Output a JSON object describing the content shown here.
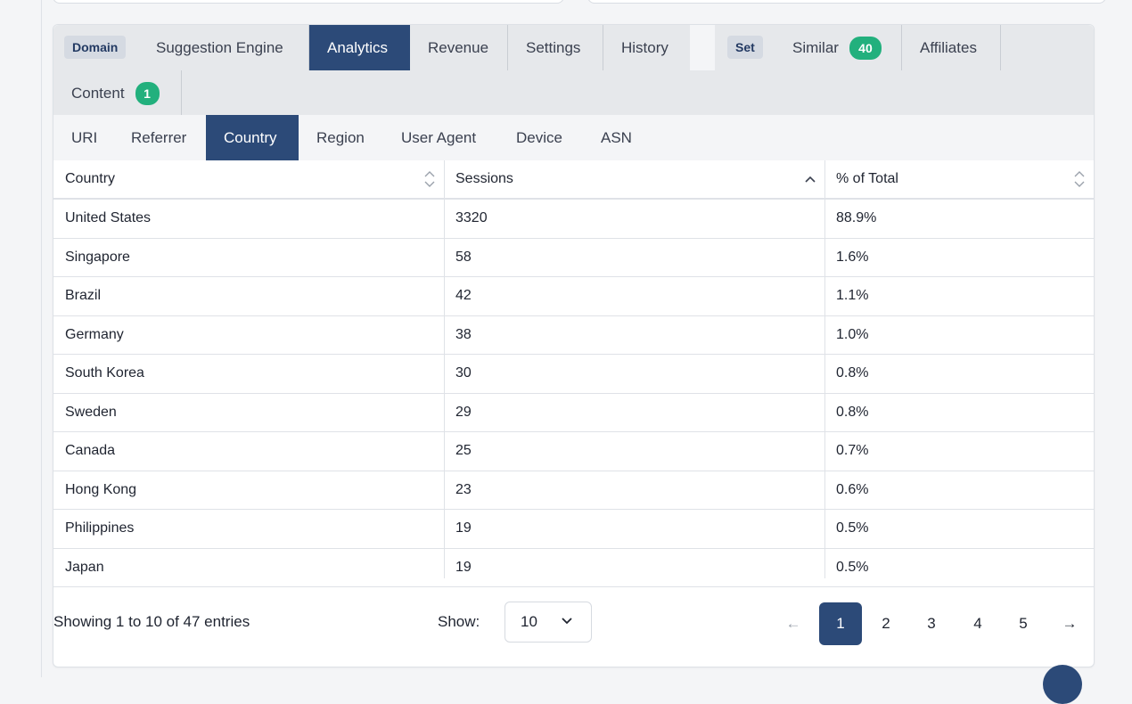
{
  "tabs": {
    "domain_tag": "Domain",
    "set_tag": "Set",
    "items": [
      {
        "label": "Suggestion Engine"
      },
      {
        "label": "Analytics"
      },
      {
        "label": "Revenue"
      },
      {
        "label": "Settings"
      },
      {
        "label": "History"
      },
      {
        "label": "Similar",
        "badge": "40"
      },
      {
        "label": "Affiliates"
      },
      {
        "label": "Content",
        "badge": "1"
      }
    ],
    "active": "Analytics"
  },
  "subtabs": {
    "items": [
      "URI",
      "Referrer",
      "Country",
      "Region",
      "User Agent",
      "Device",
      "ASN"
    ],
    "active": "Country"
  },
  "table": {
    "columns": [
      "Country",
      "Sessions",
      "% of Total"
    ],
    "rows": [
      [
        "United States",
        "3320",
        "88.9%"
      ],
      [
        "Singapore",
        "58",
        "1.6%"
      ],
      [
        "Brazil",
        "42",
        "1.1%"
      ],
      [
        "Germany",
        "38",
        "1.0%"
      ],
      [
        "South Korea",
        "30",
        "0.8%"
      ],
      [
        "Sweden",
        "29",
        "0.8%"
      ],
      [
        "Canada",
        "25",
        "0.7%"
      ],
      [
        "Hong Kong",
        "23",
        "0.6%"
      ],
      [
        "Philippines",
        "19",
        "0.5%"
      ],
      [
        "Japan",
        "19",
        "0.5%"
      ]
    ]
  },
  "footer": {
    "showing": "Showing 1 to 10 of 47 entries",
    "show_label": "Show:",
    "page_size": "10",
    "pages": [
      "1",
      "2",
      "3",
      "4",
      "5"
    ],
    "prev": "←",
    "next": "→"
  },
  "colors": {
    "accent": "#2c4a78",
    "badge": "#22b07d"
  }
}
